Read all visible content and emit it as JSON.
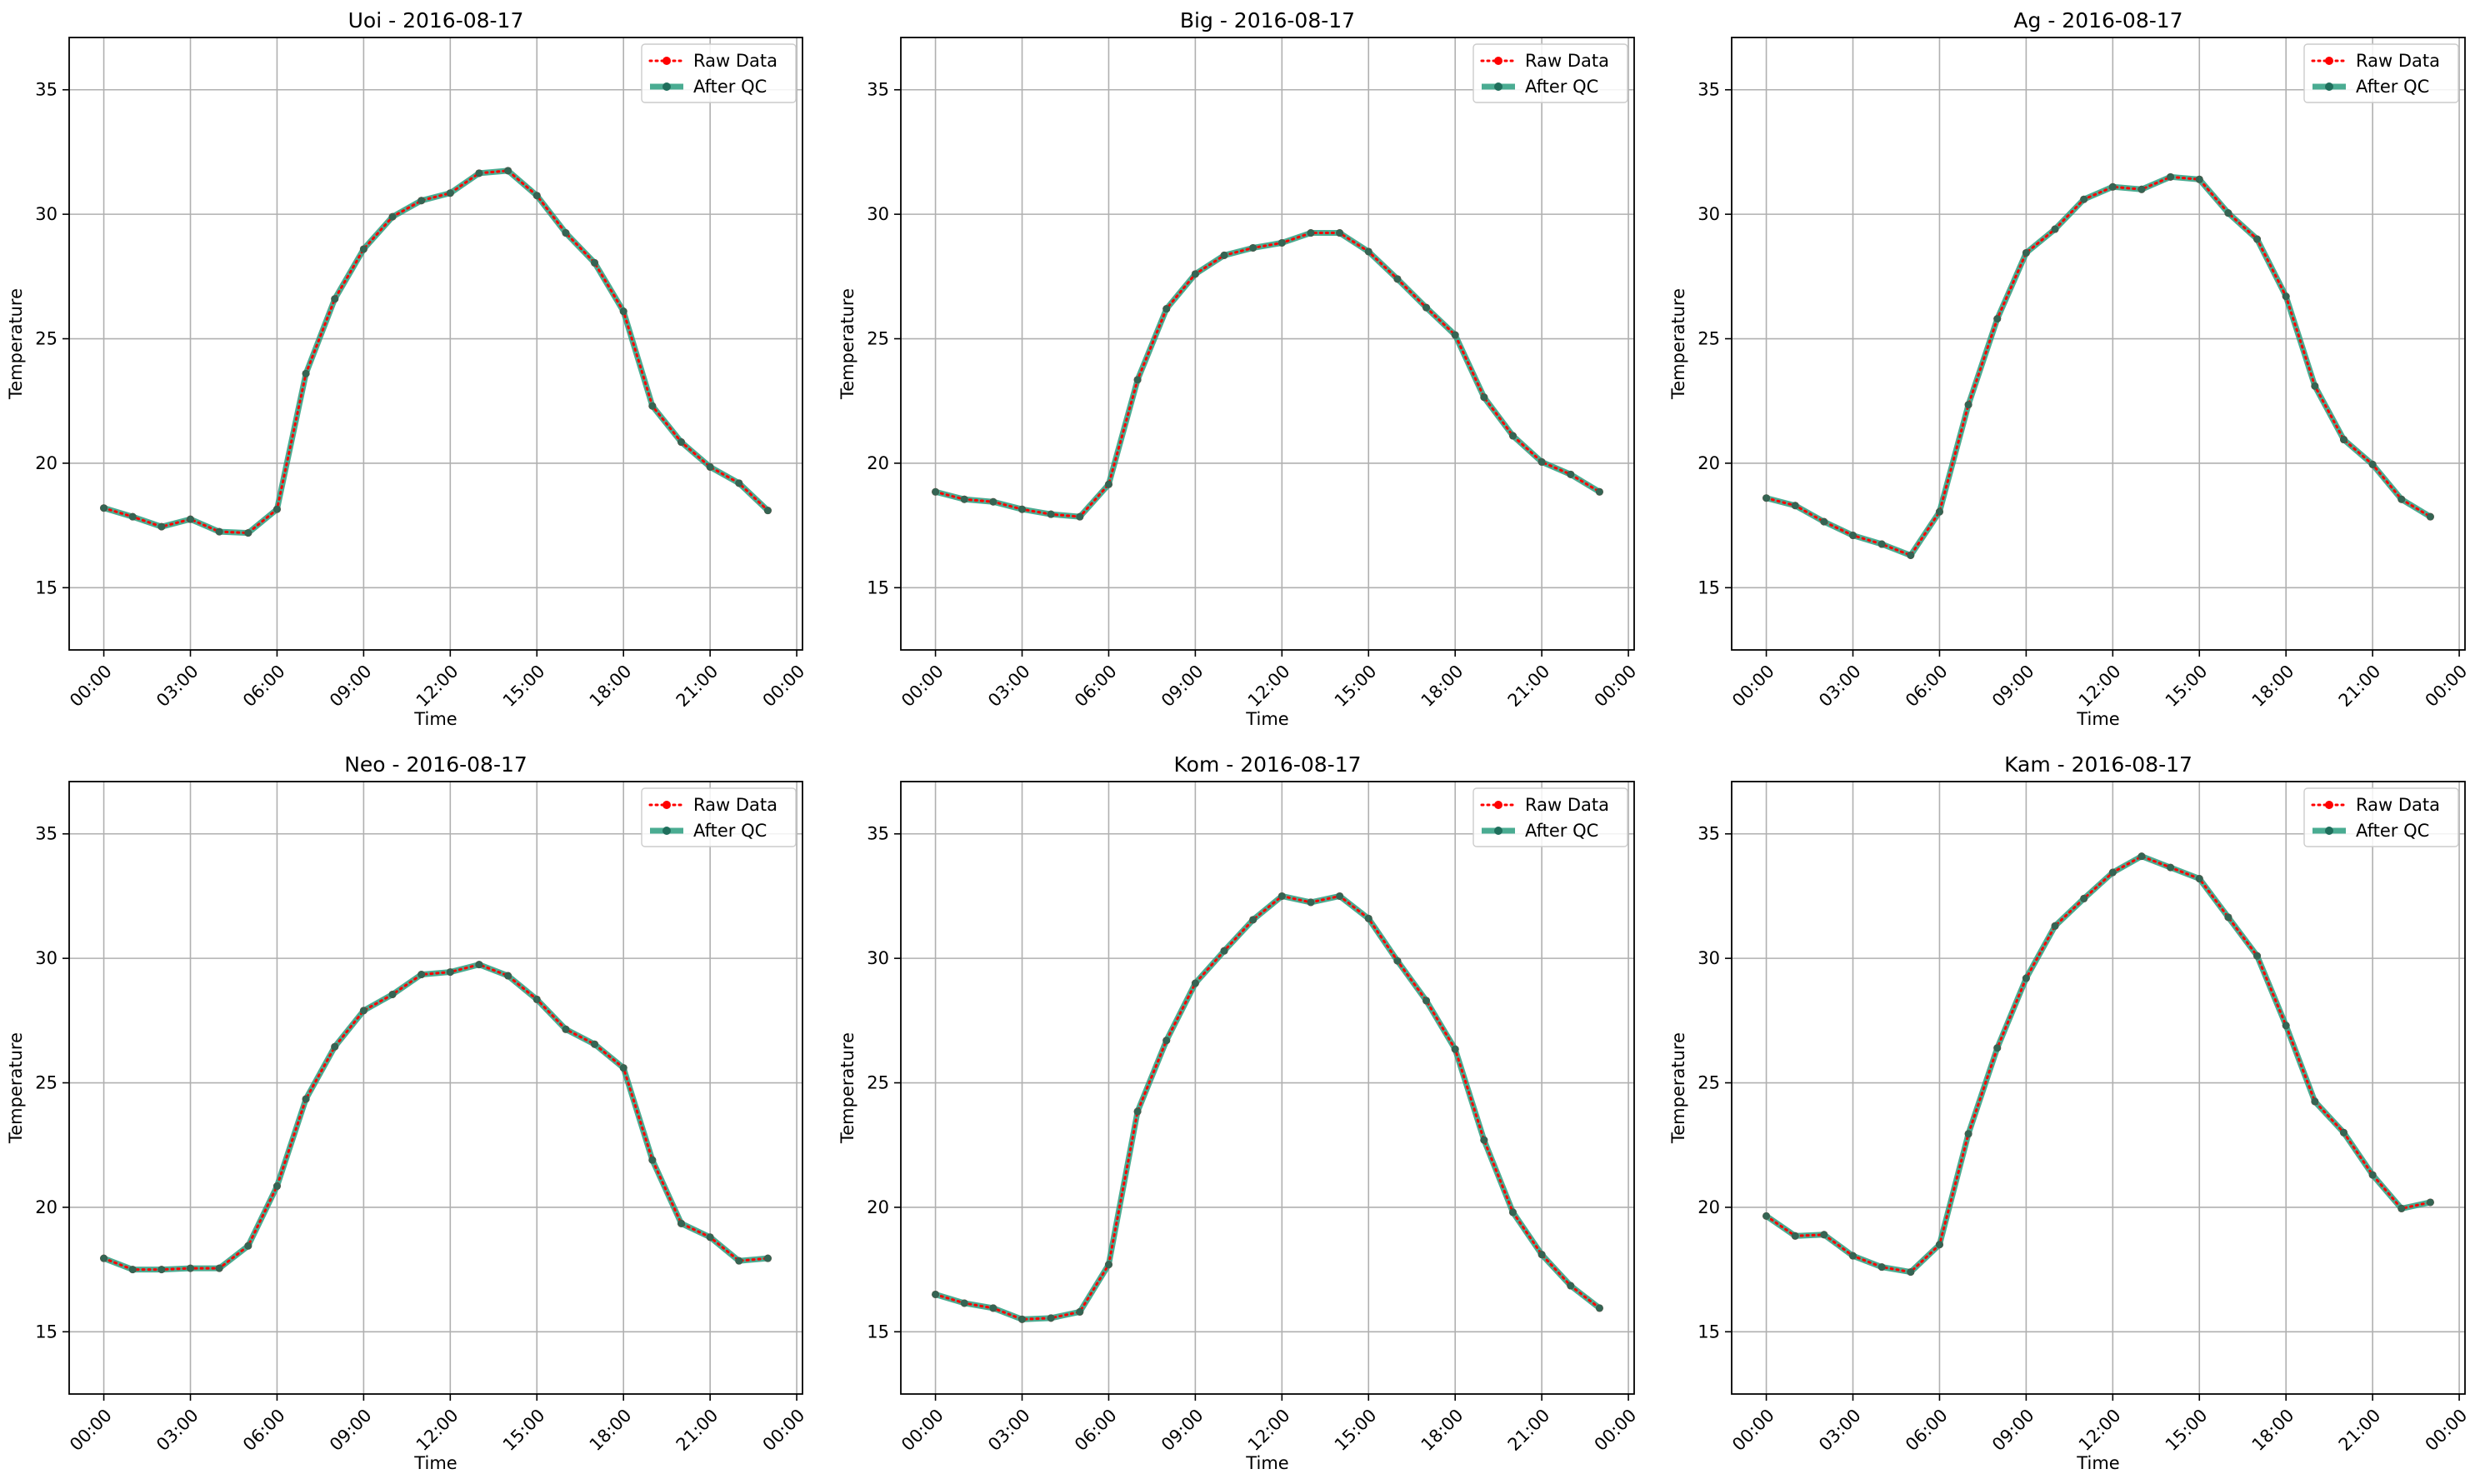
{
  "legend_entries": [
    "Raw Data",
    "After QC"
  ],
  "colors": {
    "raw": "#ff0000",
    "qc": "#2a9d7f",
    "grid": "#b0b0b0",
    "axes": "#000000"
  },
  "chart_data": [
    {
      "type": "line",
      "title": "Uoi - 2016-08-17",
      "xlabel": "Time",
      "ylabel": "Temperature",
      "x_ticks": [
        "00:00",
        "03:00",
        "06:00",
        "09:00",
        "12:00",
        "15:00",
        "18:00",
        "21:00",
        "00:00"
      ],
      "y_ticks": [
        15,
        20,
        25,
        30,
        35
      ],
      "xlim": [
        -1.2,
        24.2
      ],
      "ylim": [
        12.5,
        37.1
      ],
      "x_hours": [
        0,
        1,
        2,
        3,
        4,
        5,
        6,
        7,
        8,
        9,
        10,
        11,
        12,
        13,
        14,
        15,
        16,
        17,
        18,
        19,
        20,
        21,
        22,
        23
      ],
      "series": [
        {
          "name": "Raw Data",
          "values": [
            18.2,
            17.85,
            17.45,
            17.75,
            17.25,
            17.2,
            18.15,
            23.6,
            26.6,
            28.6,
            29.9,
            30.55,
            30.85,
            31.65,
            31.75,
            30.75,
            29.25,
            28.05,
            26.1,
            22.3,
            20.85,
            19.85,
            19.2,
            18.1
          ]
        },
        {
          "name": "After QC",
          "values": [
            18.2,
            17.85,
            17.45,
            17.75,
            17.25,
            17.2,
            18.15,
            23.6,
            26.6,
            28.6,
            29.9,
            30.55,
            30.85,
            31.65,
            31.75,
            30.75,
            29.25,
            28.05,
            26.1,
            22.3,
            20.85,
            19.85,
            19.2,
            18.1
          ]
        }
      ],
      "grid": true,
      "legend_position": "upper right"
    },
    {
      "type": "line",
      "title": "Big - 2016-08-17",
      "xlabel": "Time",
      "ylabel": "Temperature",
      "x_ticks": [
        "00:00",
        "03:00",
        "06:00",
        "09:00",
        "12:00",
        "15:00",
        "18:00",
        "21:00",
        "00:00"
      ],
      "y_ticks": [
        15,
        20,
        25,
        30,
        35
      ],
      "xlim": [
        -1.2,
        24.2
      ],
      "ylim": [
        12.5,
        37.1
      ],
      "x_hours": [
        0,
        1,
        2,
        3,
        4,
        5,
        6,
        7,
        8,
        9,
        10,
        11,
        12,
        13,
        14,
        15,
        16,
        17,
        18,
        19,
        20,
        21,
        22,
        23
      ],
      "series": [
        {
          "name": "Raw Data",
          "values": [
            18.85,
            18.55,
            18.45,
            18.15,
            17.95,
            17.85,
            19.15,
            23.35,
            26.2,
            27.6,
            28.35,
            28.65,
            28.85,
            29.25,
            29.25,
            28.5,
            27.4,
            26.25,
            25.15,
            22.65,
            21.1,
            20.05,
            19.55,
            18.85
          ]
        },
        {
          "name": "After QC",
          "values": [
            18.85,
            18.55,
            18.45,
            18.15,
            17.95,
            17.85,
            19.15,
            23.35,
            26.2,
            27.6,
            28.35,
            28.65,
            28.85,
            29.25,
            29.25,
            28.5,
            27.4,
            26.25,
            25.15,
            22.65,
            21.1,
            20.05,
            19.55,
            18.85
          ]
        }
      ],
      "grid": true,
      "legend_position": "upper right"
    },
    {
      "type": "line",
      "title": "Ag - 2016-08-17",
      "xlabel": "Time",
      "ylabel": "Temperature",
      "x_ticks": [
        "00:00",
        "03:00",
        "06:00",
        "09:00",
        "12:00",
        "15:00",
        "18:00",
        "21:00",
        "00:00"
      ],
      "y_ticks": [
        15,
        20,
        25,
        30,
        35
      ],
      "xlim": [
        -1.2,
        24.2
      ],
      "ylim": [
        12.5,
        37.1
      ],
      "x_hours": [
        0,
        1,
        2,
        3,
        4,
        5,
        6,
        7,
        8,
        9,
        10,
        11,
        12,
        13,
        14,
        15,
        16,
        17,
        18,
        19,
        20,
        21,
        22,
        23
      ],
      "series": [
        {
          "name": "Raw Data",
          "values": [
            18.6,
            18.3,
            17.65,
            17.1,
            16.75,
            16.3,
            18.05,
            22.35,
            25.8,
            28.45,
            29.4,
            30.6,
            31.1,
            31.0,
            31.5,
            31.4,
            30.05,
            29.0,
            26.7,
            23.1,
            20.95,
            19.95,
            18.55,
            17.85
          ]
        },
        {
          "name": "After QC",
          "values": [
            18.6,
            18.3,
            17.65,
            17.1,
            16.75,
            16.3,
            18.05,
            22.35,
            25.8,
            28.45,
            29.4,
            30.6,
            31.1,
            31.0,
            31.5,
            31.4,
            30.05,
            29.0,
            26.7,
            23.1,
            20.95,
            19.95,
            18.55,
            17.85
          ]
        }
      ],
      "grid": true,
      "legend_position": "upper right"
    },
    {
      "type": "line",
      "title": "Neo - 2016-08-17",
      "xlabel": "Time",
      "ylabel": "Temperature",
      "x_ticks": [
        "00:00",
        "03:00",
        "06:00",
        "09:00",
        "12:00",
        "15:00",
        "18:00",
        "21:00",
        "00:00"
      ],
      "y_ticks": [
        15,
        20,
        25,
        30,
        35
      ],
      "xlim": [
        -1.2,
        24.2
      ],
      "ylim": [
        12.5,
        37.1
      ],
      "x_hours": [
        0,
        1,
        2,
        3,
        4,
        5,
        6,
        7,
        8,
        9,
        10,
        11,
        12,
        13,
        14,
        15,
        16,
        17,
        18,
        19,
        20,
        21,
        22,
        23
      ],
      "series": [
        {
          "name": "Raw Data",
          "values": [
            17.95,
            17.5,
            17.5,
            17.55,
            17.55,
            18.45,
            20.85,
            24.35,
            26.45,
            27.9,
            28.55,
            29.35,
            29.45,
            29.75,
            29.3,
            28.35,
            27.15,
            26.55,
            25.6,
            21.9,
            19.35,
            18.8,
            17.85,
            17.95
          ]
        },
        {
          "name": "After QC",
          "values": [
            17.95,
            17.5,
            17.5,
            17.55,
            17.55,
            18.45,
            20.85,
            24.35,
            26.45,
            27.9,
            28.55,
            29.35,
            29.45,
            29.75,
            29.3,
            28.35,
            27.15,
            26.55,
            25.6,
            21.9,
            19.35,
            18.8,
            17.85,
            17.95
          ]
        }
      ],
      "grid": true,
      "legend_position": "upper right"
    },
    {
      "type": "line",
      "title": "Kom - 2016-08-17",
      "xlabel": "Time",
      "ylabel": "Temperature",
      "x_ticks": [
        "00:00",
        "03:00",
        "06:00",
        "09:00",
        "12:00",
        "15:00",
        "18:00",
        "21:00",
        "00:00"
      ],
      "y_ticks": [
        15,
        20,
        25,
        30,
        35
      ],
      "xlim": [
        -1.2,
        24.2
      ],
      "ylim": [
        12.5,
        37.1
      ],
      "x_hours": [
        0,
        1,
        2,
        3,
        4,
        5,
        6,
        7,
        8,
        9,
        10,
        11,
        12,
        13,
        14,
        15,
        16,
        17,
        18,
        19,
        20,
        21,
        22,
        23
      ],
      "series": [
        {
          "name": "Raw Data",
          "values": [
            16.5,
            16.15,
            15.95,
            15.5,
            15.55,
            15.8,
            17.7,
            23.85,
            26.7,
            29.0,
            30.3,
            31.55,
            32.5,
            32.25,
            32.5,
            31.6,
            29.9,
            28.3,
            26.35,
            22.7,
            19.8,
            18.1,
            16.85,
            15.95
          ]
        },
        {
          "name": "After QC",
          "values": [
            16.5,
            16.15,
            15.95,
            15.5,
            15.55,
            15.8,
            17.7,
            23.85,
            26.7,
            29.0,
            30.3,
            31.55,
            32.5,
            32.25,
            32.5,
            31.6,
            29.9,
            28.3,
            26.35,
            22.7,
            19.8,
            18.1,
            16.85,
            15.95
          ]
        }
      ],
      "grid": true,
      "legend_position": "upper right"
    },
    {
      "type": "line",
      "title": "Kam - 2016-08-17",
      "xlabel": "Time",
      "ylabel": "Temperature",
      "x_ticks": [
        "00:00",
        "03:00",
        "06:00",
        "09:00",
        "12:00",
        "15:00",
        "18:00",
        "21:00",
        "00:00"
      ],
      "y_ticks": [
        15,
        20,
        25,
        30,
        35
      ],
      "xlim": [
        -1.2,
        24.2
      ],
      "ylim": [
        12.5,
        37.1
      ],
      "x_hours": [
        0,
        1,
        2,
        3,
        4,
        5,
        6,
        7,
        8,
        9,
        10,
        11,
        12,
        13,
        14,
        15,
        16,
        17,
        18,
        19,
        20,
        21,
        22,
        23
      ],
      "series": [
        {
          "name": "Raw Data",
          "values": [
            19.65,
            18.85,
            18.9,
            18.05,
            17.6,
            17.4,
            18.5,
            22.95,
            26.4,
            29.2,
            31.3,
            32.4,
            33.45,
            34.1,
            33.65,
            33.2,
            31.65,
            30.1,
            27.3,
            24.25,
            23.0,
            21.3,
            19.95,
            20.2
          ]
        },
        {
          "name": "After QC",
          "values": [
            19.65,
            18.85,
            18.9,
            18.05,
            17.6,
            17.4,
            18.5,
            22.95,
            26.4,
            29.2,
            31.3,
            32.4,
            33.45,
            34.1,
            33.65,
            33.2,
            31.65,
            30.1,
            27.3,
            24.25,
            23.0,
            21.3,
            19.95,
            20.2
          ]
        }
      ],
      "grid": true,
      "legend_position": "upper right"
    }
  ]
}
